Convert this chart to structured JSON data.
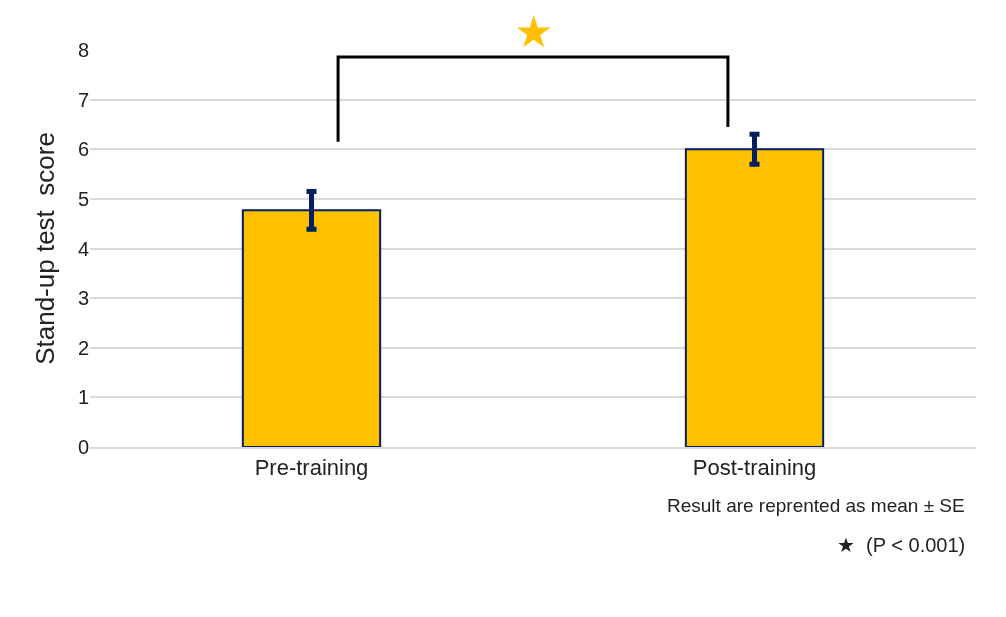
{
  "chart_data": {
    "type": "bar",
    "ylabel": "Stand-up test  score",
    "categories": [
      "Pre-training",
      "Post-training"
    ],
    "values": [
      4.77,
      6.0
    ],
    "errors": [
      0.38,
      0.3
    ],
    "color": "#ffc000",
    "ylim": [
      0,
      8
    ],
    "yticks": [
      0,
      1,
      2,
      3,
      4,
      5,
      6,
      7,
      8
    ],
    "grid": "y",
    "legend": false,
    "annotations": [
      "★",
      "Result are reprented as mean ± SE",
      "★  (P < 0.001)"
    ]
  }
}
